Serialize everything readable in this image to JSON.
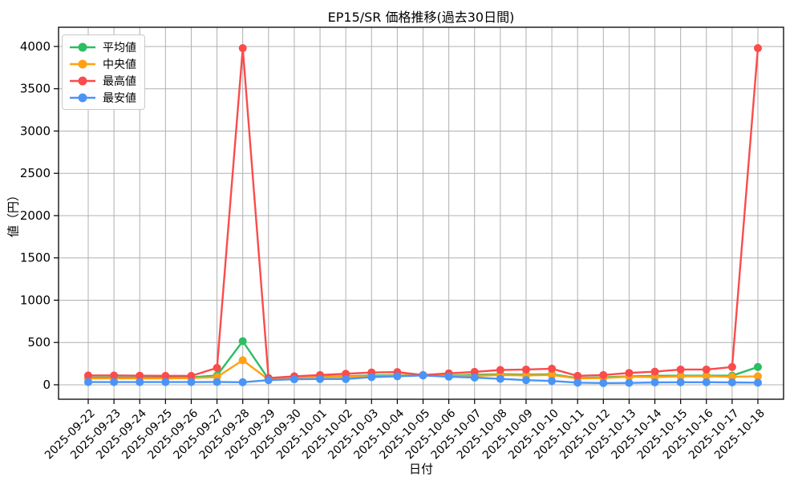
{
  "title": "EP15/SR 価格推移(過去30日間)",
  "chart_data": {
    "type": "line",
    "title": "EP15/SR 価格推移(過去30日間)",
    "xlabel": "日付",
    "ylabel": "値（円）",
    "grid": true,
    "legend_position": "upper left",
    "ylim": [
      -171,
      4227
    ],
    "y_ticks": [
      0,
      500,
      1000,
      1500,
      2000,
      2500,
      3000,
      3500,
      4000
    ],
    "x": [
      "2025-09-22",
      "2025-09-23",
      "2025-09-24",
      "2025-09-25",
      "2025-09-26",
      "2025-09-27",
      "2025-09-28",
      "2025-09-29",
      "2025-09-30",
      "2025-10-01",
      "2025-10-02",
      "2025-10-03",
      "2025-10-04",
      "2025-10-05",
      "2025-10-06",
      "2025-10-07",
      "2025-10-08",
      "2025-10-09",
      "2025-10-10",
      "2025-10-11",
      "2025-10-12",
      "2025-10-13",
      "2025-10-14",
      "2025-10-15",
      "2025-10-16",
      "2025-10-17",
      "2025-10-18"
    ],
    "series": [
      {
        "name": "平均値",
        "color": "#2dbd63",
        "values": [
          85,
          85,
          85,
          85,
          88,
          110,
          515,
          68,
          90,
          95,
          100,
          110,
          115,
          112,
          110,
          118,
          125,
          120,
          125,
          80,
          88,
          100,
          105,
          108,
          108,
          108,
          210
        ]
      },
      {
        "name": "中央値",
        "color": "#ffa113",
        "values": [
          75,
          75,
          75,
          75,
          78,
          92,
          290,
          62,
          85,
          90,
          92,
          100,
          110,
          110,
          105,
          105,
          115,
          110,
          115,
          75,
          80,
          95,
          90,
          100,
          100,
          95,
          100
        ]
      },
      {
        "name": "最高値",
        "color": "#fb4b4b",
        "values": [
          110,
          110,
          108,
          105,
          105,
          200,
          3980,
          80,
          100,
          115,
          130,
          145,
          150,
          115,
          135,
          152,
          175,
          180,
          190,
          105,
          115,
          140,
          155,
          180,
          180,
          210,
          3980
        ]
      },
      {
        "name": "最安値",
        "color": "#4a94f8",
        "values": [
          32,
          32,
          32,
          32,
          32,
          33,
          30,
          55,
          65,
          68,
          68,
          90,
          100,
          110,
          95,
          85,
          70,
          55,
          45,
          25,
          20,
          22,
          28,
          30,
          30,
          28,
          25
        ]
      }
    ]
  },
  "colors": {
    "grid": "#b0b0b0",
    "spine": "#000000",
    "tick_label": "#000000"
  }
}
